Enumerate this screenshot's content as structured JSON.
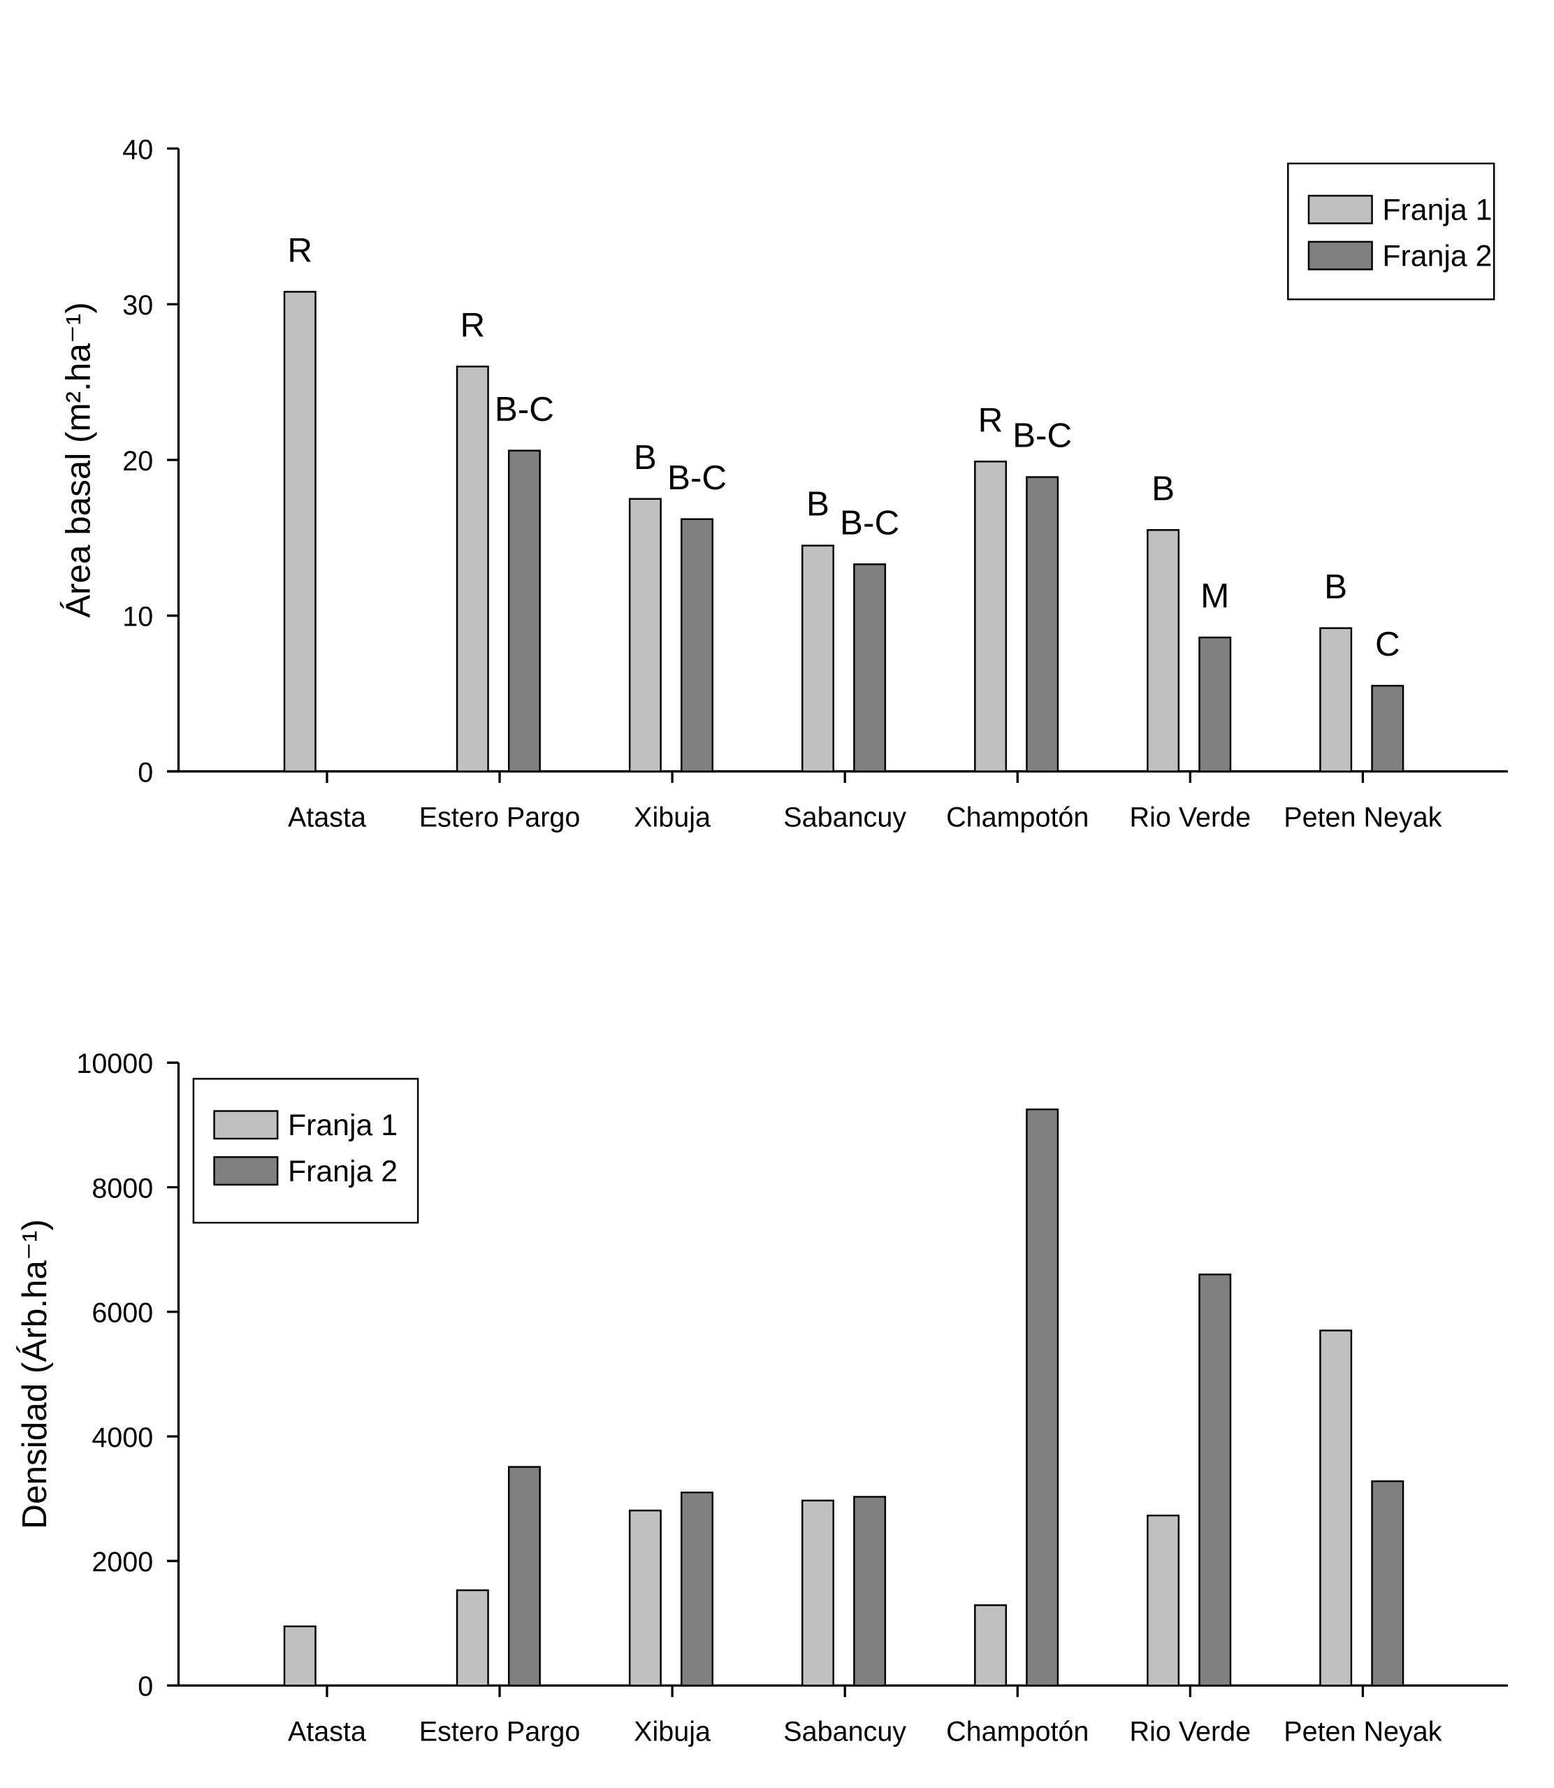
{
  "chart_data": [
    {
      "type": "bar",
      "ylabel": "Área basal (m².ha⁻¹)",
      "categories": [
        "Atasta",
        "Estero Pargo",
        "Xibuja",
        "Sabancuy",
        "Champotón",
        "Rio Verde",
        "Peten Neyak"
      ],
      "series": [
        {
          "name": "Franja 1",
          "color": "#c0c0c0",
          "values": [
            30.8,
            26.0,
            17.5,
            14.5,
            19.9,
            15.5,
            9.2
          ],
          "labels": [
            "R",
            "R",
            "B",
            "B",
            "R",
            "B",
            "B"
          ]
        },
        {
          "name": "Franja 2",
          "color": "#808080",
          "values": [
            null,
            20.6,
            16.2,
            13.3,
            18.9,
            8.6,
            5.5
          ],
          "labels": [
            null,
            "B-C",
            "B-C",
            "B-C",
            "B-C",
            "M",
            "C"
          ]
        }
      ],
      "ylim": [
        0,
        40
      ],
      "yticks": [
        0,
        10,
        20,
        30,
        40
      ],
      "legend": "upper right"
    },
    {
      "type": "bar",
      "ylabel": "Densidad (Árb.ha⁻¹)",
      "categories": [
        "Atasta",
        "Estero Pargo",
        "Xibuja",
        "Sabancuy",
        "Champotón",
        "Rio Verde",
        "Peten Neyak"
      ],
      "series": [
        {
          "name": "Franja 1",
          "color": "#c0c0c0",
          "values": [
            950,
            1530,
            2810,
            2970,
            1290,
            2730,
            5700
          ]
        },
        {
          "name": "Franja 2",
          "color": "#808080",
          "values": [
            null,
            3510,
            3100,
            3030,
            9250,
            6600,
            3280
          ]
        }
      ],
      "ylim": [
        0,
        10000
      ],
      "yticks": [
        0,
        2000,
        4000,
        6000,
        8000,
        10000
      ],
      "legend": "upper left"
    }
  ]
}
